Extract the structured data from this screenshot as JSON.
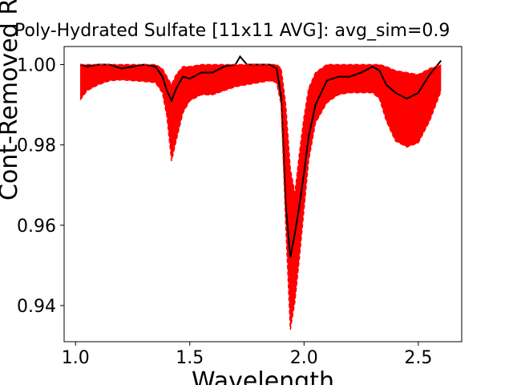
{
  "chart_data": {
    "type": "line",
    "title": "Poly-Hydrated Sulfate [11x11 AVG]: avg_sim=0.9",
    "xlabel": "Wavelength",
    "ylabel": "Cont-Removed Refl.",
    "xlim": [
      0.95,
      2.69
    ],
    "ylim": [
      0.931,
      1.0045
    ],
    "x_ticks": [
      1.0,
      1.5,
      2.0,
      2.5
    ],
    "x_tick_labels": [
      "1.0",
      "1.5",
      "2.0",
      "2.5"
    ],
    "y_ticks": [
      0.94,
      0.96,
      0.98,
      1.0
    ],
    "y_tick_labels": [
      "0.94",
      "0.96",
      "0.98",
      "1.00"
    ],
    "grid": false,
    "colors": {
      "average": "#000000",
      "pixels": "#ff0000"
    },
    "series": [
      {
        "name": "",
        "style": "solid",
        "color": "#000000",
        "x": [
          1.02,
          1.05,
          1.1,
          1.15,
          1.2,
          1.25,
          1.3,
          1.35,
          1.38,
          1.4,
          1.42,
          1.44,
          1.47,
          1.5,
          1.55,
          1.6,
          1.65,
          1.7,
          1.72,
          1.75,
          1.8,
          1.85,
          1.88,
          1.9,
          1.92,
          1.94,
          1.96,
          1.98,
          2.0,
          2.02,
          2.05,
          2.1,
          2.15,
          2.2,
          2.25,
          2.3,
          2.33,
          2.36,
          2.4,
          2.45,
          2.5,
          2.55,
          2.6
        ],
        "y": [
          1.0,
          0.9995,
          1.0,
          1.0,
          0.999,
          0.9995,
          1.0,
          0.9995,
          0.997,
          0.9935,
          0.991,
          0.994,
          0.997,
          0.9965,
          0.998,
          0.998,
          0.9995,
          1.0,
          1.002,
          1.0,
          1.0,
          1.0,
          0.999,
          0.992,
          0.965,
          0.952,
          0.958,
          0.965,
          0.973,
          0.982,
          0.99,
          0.996,
          0.997,
          0.997,
          0.998,
          0.9995,
          0.9985,
          0.995,
          0.993,
          0.9915,
          0.993,
          0.9975,
          1.001
        ]
      },
      {
        "name": "",
        "style": "dashed",
        "color": "#ff0000",
        "x": [
          1.02,
          1.05,
          1.1,
          1.15,
          1.2,
          1.25,
          1.3,
          1.35,
          1.38,
          1.4,
          1.42,
          1.44,
          1.47,
          1.5,
          1.55,
          1.6,
          1.65,
          1.7,
          1.75,
          1.8,
          1.85,
          1.88,
          1.9,
          1.92,
          1.94,
          1.96,
          1.98,
          2.0,
          2.02,
          2.05,
          2.1,
          2.15,
          2.2,
          2.25,
          2.3,
          2.33,
          2.36,
          2.4,
          2.45,
          2.5,
          2.55,
          2.6
        ],
        "y": [
          1.0,
          1.0,
          1.0,
          1.0,
          1.0,
          1.0,
          1.0,
          1.0,
          0.999,
          0.997,
          0.995,
          0.9975,
          0.9995,
          0.9995,
          1.0,
          1.0,
          1.0,
          1.0,
          1.0,
          1.0,
          1.0,
          1.0,
          0.999,
          0.99,
          0.974,
          0.968,
          0.978,
          0.987,
          0.994,
          0.998,
          1.0,
          1.0,
          1.0,
          1.0,
          1.0,
          1.0,
          0.9995,
          0.9985,
          0.998,
          0.9975,
          0.999,
          1.0
        ]
      },
      {
        "name": "",
        "style": "dashed",
        "color": "#ff0000",
        "x": [
          1.02,
          1.05,
          1.1,
          1.15,
          1.2,
          1.25,
          1.3,
          1.35,
          1.38,
          1.4,
          1.42,
          1.44,
          1.47,
          1.5,
          1.55,
          1.6,
          1.65,
          1.7,
          1.75,
          1.8,
          1.85,
          1.88,
          1.9,
          1.92,
          1.94,
          1.96,
          1.98,
          2.0,
          2.02,
          2.05,
          2.1,
          2.15,
          2.2,
          2.25,
          2.3,
          2.33,
          2.36,
          2.4,
          2.45,
          2.5,
          2.55,
          2.6
        ],
        "y": [
          0.9912,
          0.9935,
          0.995,
          0.996,
          0.9962,
          0.996,
          0.9958,
          0.9955,
          0.993,
          0.987,
          0.976,
          0.981,
          0.988,
          0.991,
          0.9925,
          0.9925,
          0.9935,
          0.9945,
          0.995,
          0.9955,
          0.996,
          0.9955,
          0.99,
          0.96,
          0.934,
          0.941,
          0.952,
          0.964,
          0.976,
          0.9855,
          0.9905,
          0.9925,
          0.993,
          0.993,
          0.993,
          0.9915,
          0.986,
          0.981,
          0.9795,
          0.9805,
          0.986,
          0.9935
        ]
      }
    ]
  }
}
